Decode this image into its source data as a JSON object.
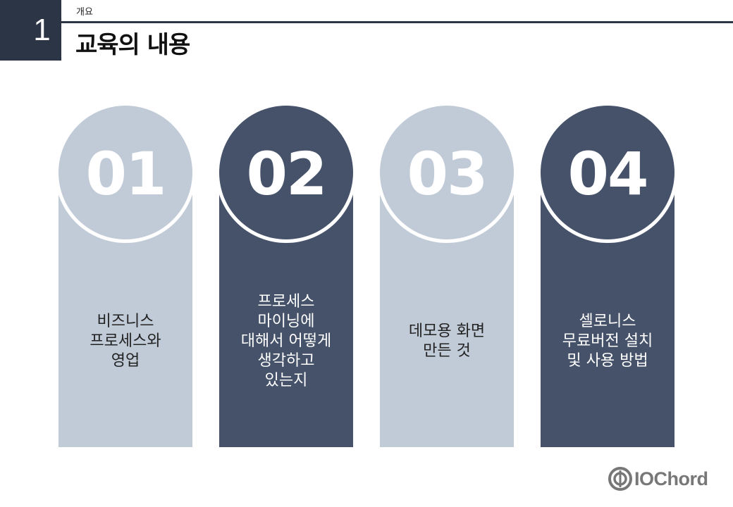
{
  "header": {
    "section_number": "1",
    "section_label": "개요",
    "title": "교육의 내용"
  },
  "cards": [
    {
      "number": "01",
      "text": "비즈니스\n프로세스와\n영업",
      "theme": "light"
    },
    {
      "number": "02",
      "text": "프로세스\n마이닝에\n대해서 어떻게\n생각하고\n있는지",
      "theme": "dark"
    },
    {
      "number": "03",
      "text": "데모용 화면\n만든 것",
      "theme": "light"
    },
    {
      "number": "04",
      "text": "셀로니스\n무료버전 설치\n및 사용 방법",
      "theme": "dark"
    }
  ],
  "colors": {
    "dark": "#45526a",
    "light": "#c1cbd8",
    "header_dark": "#2c3545"
  },
  "logo": {
    "text": "IOChord",
    "icon": "iochord-logo-icon"
  }
}
